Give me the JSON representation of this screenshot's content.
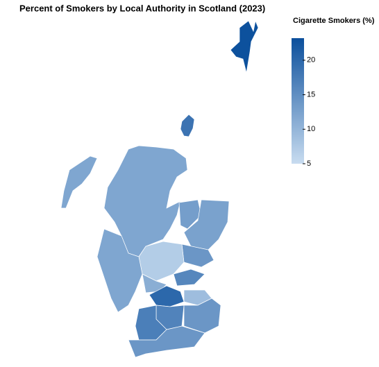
{
  "chart_data": {
    "type": "choropleth",
    "title": "Percent of Smokers by Local Authority in Scotland (2023)",
    "legend_title": "Cigarette Smokers (%)",
    "values": [
      23,
      18.5,
      12,
      12,
      13,
      12.5,
      14,
      7,
      12,
      11,
      16,
      20,
      9,
      16.5,
      17,
      14,
      14
    ],
    "colors": [
      "#c8dcf0",
      "#0b4f9c"
    ],
    "clim": [
      5,
      23.2
    ],
    "cticks": [
      5,
      10,
      15,
      20
    ]
  }
}
